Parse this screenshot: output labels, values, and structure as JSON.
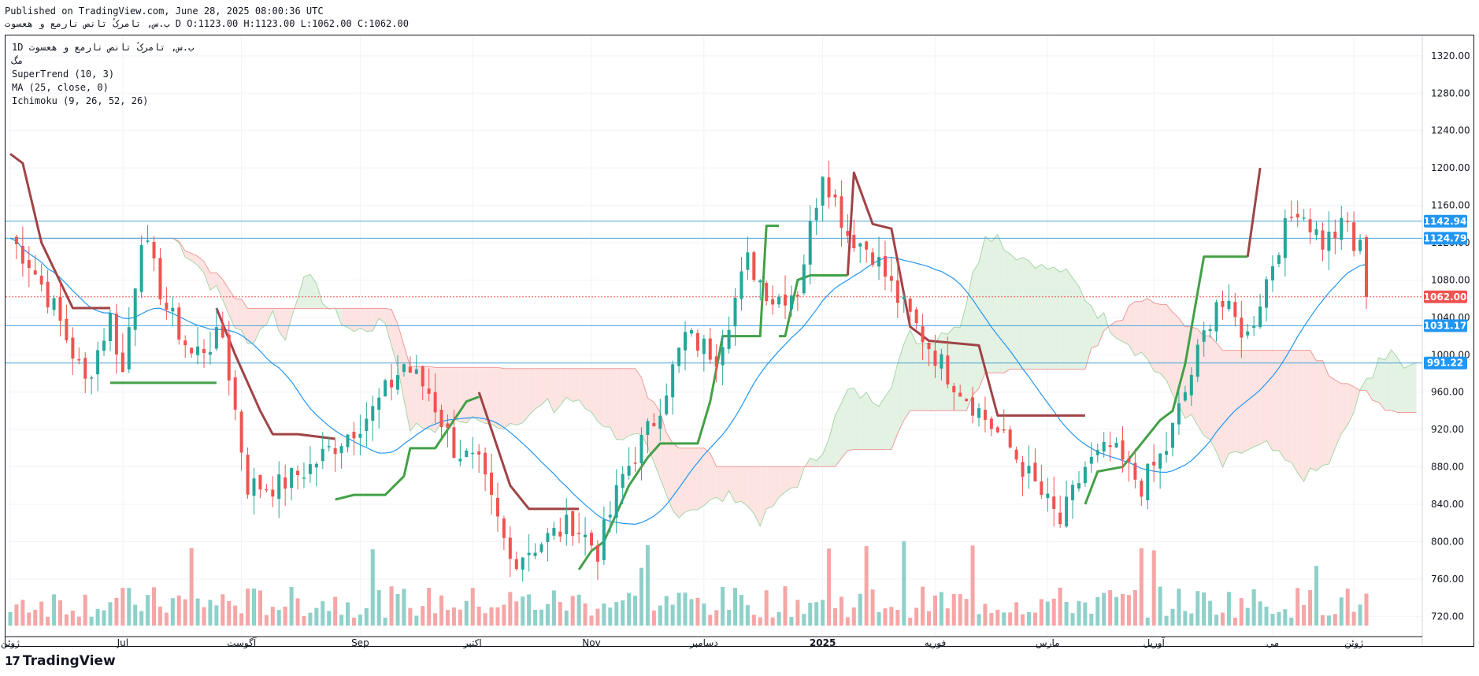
{
  "header": {
    "published": "Published on TradingView.com, June 28, 2025 08:00:36 UTC",
    "ohlc": "ب.س, تامرکٔ تانص نارمع و هعسوت D O:1123.00 H:1123.00 L:1062.00 C:1062.00"
  },
  "legend": {
    "symbol": "1D  ب.س, تامرکٔ تانص نارمع و هعسوت",
    "sub": "مگ",
    "supertrend": "SuperTrend (10, 3)",
    "ma": "MA (25, close, 0)",
    "ichimoku": "Ichimoku (9, 26, 52, 26)"
  },
  "brand": {
    "mark": "17",
    "name": "TradingView"
  },
  "colors": {
    "up": "#26a69a",
    "down": "#ef5350",
    "vol_up": "#8fd0c9",
    "vol_down": "#f5a6a6",
    "st_up": "#43a047",
    "st_down": "#a04346",
    "ma": "#2196f3",
    "cloud_up": "#e3f2e3",
    "cloud_down": "#fde4e2",
    "hline": "#4aa3d9",
    "last": "#ef5350"
  },
  "chart_data": {
    "type": "candlestick",
    "y_axis": {
      "min": 700,
      "max": 1330,
      "ticks": [
        720,
        760,
        800,
        840,
        880,
        920,
        960,
        1000,
        1040,
        1080,
        1120,
        1160,
        1200,
        1240,
        1280,
        1320
      ]
    },
    "x_labels": [
      "ژوئن",
      "Jul",
      "آگوست",
      "Sep",
      "اکتبر",
      "Nov",
      "دسامبر",
      "2025",
      "فوریه",
      "مارس",
      "آوریل",
      "می",
      "ژوئن"
    ],
    "price_lines": [
      {
        "label": "1142.94",
        "value": 1142.94
      },
      {
        "label": "1124.79",
        "value": 1124.79
      },
      {
        "label": "1031.17",
        "value": 1031.17
      },
      {
        "label": "991.22",
        "value": 991.22
      }
    ],
    "last_price": {
      "label": "1062.00",
      "value": 1062.0
    },
    "anchors": [
      [
        0,
        1125,
        0
      ],
      [
        3,
        1100,
        0
      ],
      [
        7,
        1050,
        0
      ],
      [
        12,
        970,
        0
      ],
      [
        16,
        1040,
        0
      ],
      [
        18,
        980,
        0
      ],
      [
        21,
        1130,
        0
      ],
      [
        25,
        1050,
        0
      ],
      [
        29,
        1000,
        0
      ],
      [
        34,
        1020,
        0
      ],
      [
        38,
        860,
        0
      ],
      [
        43,
        860,
        0
      ],
      [
        48,
        880,
        0
      ],
      [
        53,
        910,
        0
      ],
      [
        58,
        940,
        0
      ],
      [
        63,
        990,
        0
      ],
      [
        67,
        960,
        0
      ],
      [
        71,
        900,
        0
      ],
      [
        75,
        880,
        0
      ],
      [
        80,
        780,
        0
      ],
      [
        85,
        800,
        0
      ],
      [
        90,
        820,
        0
      ],
      [
        94,
        790,
        0
      ],
      [
        98,
        870,
        0
      ],
      [
        103,
        930,
        0
      ],
      [
        108,
        1020,
        0
      ],
      [
        113,
        1000,
        0
      ],
      [
        118,
        1100,
        0
      ],
      [
        122,
        1060,
        0
      ],
      [
        126,
        1070,
        0
      ],
      [
        130,
        1200,
        0
      ],
      [
        134,
        1130,
        0
      ],
      [
        138,
        1110,
        0
      ],
      [
        142,
        1060,
        0
      ],
      [
        146,
        1020,
        0
      ],
      [
        150,
        980,
        0
      ],
      [
        155,
        940,
        0
      ],
      [
        160,
        900,
        0
      ],
      [
        164,
        860,
        0
      ],
      [
        168,
        820,
        0
      ],
      [
        172,
        880,
        0
      ],
      [
        176,
        900,
        0
      ],
      [
        181,
        860,
        0
      ],
      [
        185,
        900,
        0
      ],
      [
        188,
        960,
        0
      ],
      [
        193,
        1060,
        0
      ],
      [
        198,
        1020,
        0
      ],
      [
        203,
        1120,
        0
      ],
      [
        206,
        1160,
        0
      ],
      [
        210,
        1120,
        0
      ],
      [
        214,
        1140,
        0
      ],
      [
        217,
        1062,
        0
      ]
    ],
    "supertrend": {
      "down": [
        [
          0,
          1215
        ],
        [
          2,
          1205
        ],
        [
          5,
          1120
        ],
        [
          10,
          1050
        ],
        [
          16,
          1050
        ],
        [
          16,
          1050
        ]
      ],
      "up": [
        [
          16,
          970
        ],
        [
          20,
          970
        ],
        [
          33,
          970
        ]
      ],
      "down2": [
        [
          33,
          1050
        ],
        [
          36,
          1000
        ],
        [
          40,
          940
        ],
        [
          42,
          915
        ],
        [
          46,
          915
        ],
        [
          52,
          910
        ]
      ],
      "up2": [
        [
          52,
          845
        ],
        [
          55,
          850
        ],
        [
          60,
          850
        ],
        [
          63,
          870
        ],
        [
          64,
          900
        ],
        [
          68,
          900
        ],
        [
          71,
          930
        ],
        [
          73,
          950
        ],
        [
          75,
          955
        ]
      ],
      "down3": [
        [
          75,
          960
        ],
        [
          78,
          900
        ],
        [
          80,
          860
        ],
        [
          83,
          835
        ],
        [
          91,
          835
        ]
      ],
      "up3": [
        [
          91,
          770
        ],
        [
          93,
          790
        ],
        [
          95,
          800
        ],
        [
          97,
          830
        ],
        [
          99,
          860
        ],
        [
          102,
          890
        ],
        [
          104,
          905
        ],
        [
          110,
          905
        ],
        [
          112,
          950
        ],
        [
          114,
          1020
        ],
        [
          120,
          1020
        ],
        [
          121,
          1138
        ],
        [
          123,
          1138
        ]
      ],
      "up4": [
        [
          123,
          1020
        ],
        [
          124,
          1020
        ],
        [
          126,
          1080
        ],
        [
          128,
          1085
        ],
        [
          134,
          1085
        ]
      ],
      "down4": [
        [
          134,
          1085
        ],
        [
          135,
          1195
        ],
        [
          138,
          1140
        ],
        [
          141,
          1135
        ],
        [
          144,
          1030
        ],
        [
          147,
          1015
        ],
        [
          155,
          1010
        ],
        [
          158,
          935
        ],
        [
          172,
          935
        ]
      ],
      "up5": [
        [
          172,
          840
        ],
        [
          174,
          875
        ],
        [
          178,
          880
        ],
        [
          181,
          905
        ],
        [
          184,
          930
        ],
        [
          186,
          940
        ],
        [
          188,
          990
        ],
        [
          191,
          1105
        ],
        [
          198,
          1105
        ]
      ],
      "down5": [
        [
          198,
          1105
        ],
        [
          200,
          1200
        ]
      ]
    }
  }
}
